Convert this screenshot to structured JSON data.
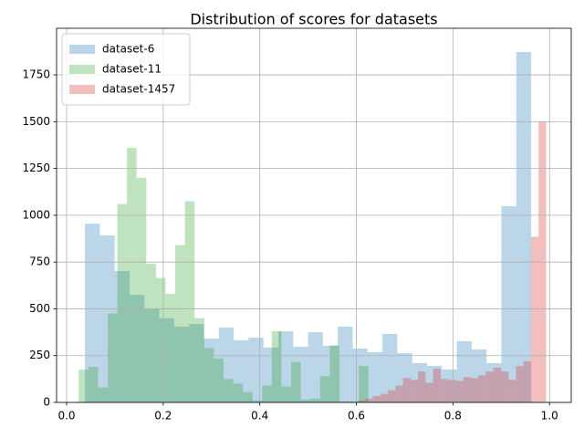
{
  "chart_data": {
    "type": "histogram",
    "title": "Distribution of scores for datasets",
    "xlim": [
      -0.0208,
      1.045
    ],
    "ylim": [
      0,
      1999
    ],
    "xticks": [
      {
        "value": 0,
        "label": "0.0"
      },
      0.2,
      0.4,
      0.6,
      0.8,
      {
        "value": 1,
        "label": "1.0"
      }
    ],
    "yticks": [
      0,
      250,
      500,
      750,
      1000,
      1250,
      1500,
      1750
    ],
    "grid": true,
    "legend": "upper left",
    "opacity": 0.3,
    "series": [
      {
        "name": "dataset-6",
        "color": "#1f77b4",
        "bins": [
          0.038,
          0.0688,
          0.0996,
          0.1304,
          0.1612,
          0.192,
          0.2228,
          0.2536,
          0.2844,
          0.3152,
          0.346,
          0.3768,
          0.4076,
          0.4384,
          0.4692,
          0.5,
          0.5308,
          0.5616,
          0.5924,
          0.6232,
          0.654,
          0.6848,
          0.7156,
          0.7464,
          0.7772,
          0.808,
          0.8388,
          0.8696,
          0.9004,
          0.9312,
          0.962
        ],
        "values": [
          955,
          892,
          702,
          575,
          502,
          449,
          405,
          419,
          341,
          400,
          332,
          346,
          293,
          380,
          297,
          375,
          302,
          405,
          288,
          268,
          366,
          263,
          210,
          195,
          176,
          327,
          283,
          210,
          1048,
          1872
        ]
      },
      {
        "name": "dataset-11",
        "color": "#2ca02c",
        "bins": [
          0.025,
          0.045,
          0.065,
          0.085,
          0.105,
          0.125,
          0.145,
          0.165,
          0.185,
          0.205,
          0.225,
          0.245,
          0.265,
          0.285,
          0.305,
          0.325,
          0.345,
          0.365,
          0.385,
          0.405,
          0.425,
          0.445,
          0.465,
          0.485,
          0.505,
          0.525,
          0.545,
          0.565,
          0.585,
          0.605,
          0.625
        ],
        "values": [
          175,
          190,
          80,
          475,
          1060,
          1360,
          1200,
          740,
          665,
          580,
          840,
          1075,
          450,
          290,
          235,
          125,
          100,
          55,
          10,
          90,
          380,
          85,
          215,
          15,
          20,
          140,
          305,
          5,
          5,
          195
        ]
      },
      {
        "name": "dataset-1457",
        "color": "#d62728",
        "bins": [
          0.603,
          0.6186,
          0.6342,
          0.6498,
          0.6654,
          0.681,
          0.6966,
          0.7122,
          0.7278,
          0.7434,
          0.759,
          0.7746,
          0.7902,
          0.8058,
          0.8214,
          0.837,
          0.8526,
          0.8682,
          0.8838,
          0.8994,
          0.915,
          0.9306,
          0.9462,
          0.9618,
          0.9774,
          0.993
        ],
        "values": [
          10,
          20,
          35,
          45,
          65,
          90,
          130,
          120,
          165,
          105,
          180,
          125,
          120,
          115,
          135,
          130,
          145,
          165,
          185,
          165,
          120,
          195,
          220,
          885,
          1500
        ]
      }
    ]
  }
}
